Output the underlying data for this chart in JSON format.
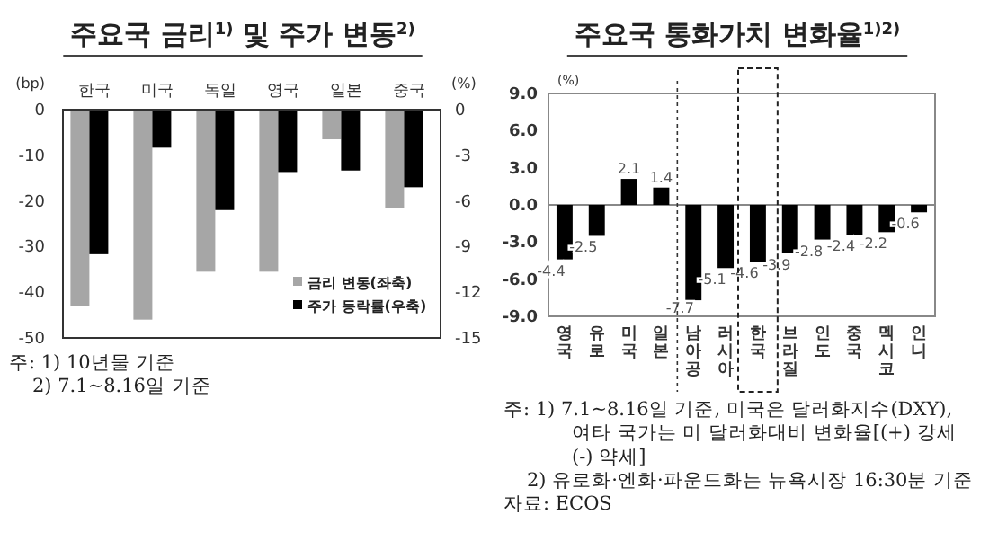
{
  "chart_data": [
    {
      "type": "bar",
      "title": "주요국 금리$^{1)}$ 및 주가 변동$^{2)}$",
      "ylabel": "(bp)",
      "y2label": "(%)",
      "categories": [
        "한국",
        "미국",
        "독일",
        "영국",
        "일본",
        "중국"
      ],
      "series": [
        {
          "name": "금리 변동(좌축)",
          "color": "#a6a6a6",
          "values": [
            -43,
            -46,
            -35.5,
            -35.5,
            -6.5,
            -21.5
          ]
        },
        {
          "name": "주가 등락률(우축)",
          "color": "#000000",
          "axis": "y2",
          "values": [
            -9.5,
            -2.5,
            -6.6,
            -4.1,
            -4.0,
            -5.1
          ]
        }
      ],
      "ylim": [
        -50,
        0
      ],
      "yticks": [
        0,
        -10,
        -20,
        -30,
        -40,
        -50
      ],
      "y2lim": [
        -15,
        0
      ],
      "y2ticks": [
        0,
        -3,
        -6,
        -9,
        -12,
        -15
      ],
      "legend": "bottom right",
      "grid": false,
      "annotations": [
        "주: 1) 10년물 기준",
        "2) 7.1~8.16일 기준"
      ]
    },
    {
      "type": "bar",
      "title": "주요국 통화가치 변화율$^{1)2)}$",
      "ylabel": "(%)",
      "categories": [
        "영국",
        "유로",
        "미국",
        "일본",
        "남아공",
        "러시아",
        "한국",
        "브라질",
        "인도",
        "중국",
        "멕시코",
        "인니"
      ],
      "values": [
        -4.4,
        -2.5,
        2.1,
        1.4,
        -7.7,
        -5.1,
        -4.6,
        -3.9,
        -2.8,
        -2.4,
        -2.2,
        -0.6
      ],
      "color": "#000000",
      "data_labels": true,
      "ylim": [
        -9,
        9
      ],
      "yticks": [
        {
          "value": 9,
          "label": "9.0"
        },
        {
          "value": 6,
          "label": "6.0"
        },
        {
          "value": 3,
          "label": "3.0"
        },
        {
          "value": 0,
          "label": "0.0"
        },
        {
          "value": -3,
          "label": "-3.0"
        },
        {
          "value": -6,
          "label": "-6.0"
        },
        {
          "value": -9,
          "label": "-9.0"
        }
      ],
      "grid": false,
      "ref_lines": [
        {
          "axis": "x",
          "value": "남아공",
          "line_style": "dashed",
          "color": "#333333"
        }
      ],
      "annotations": [
        "주: 1) 7.1~8.16일 기준, 미국은 달러화지수(DXY), 여타 국가는 미 달러화대비 변화율[(+) 강세 (-) 약세]",
        "2) 유로화·엔화·파운드화는 뉴욕시장 16:30분 기준",
        "자료: ECOS"
      ]
    }
  ]
}
